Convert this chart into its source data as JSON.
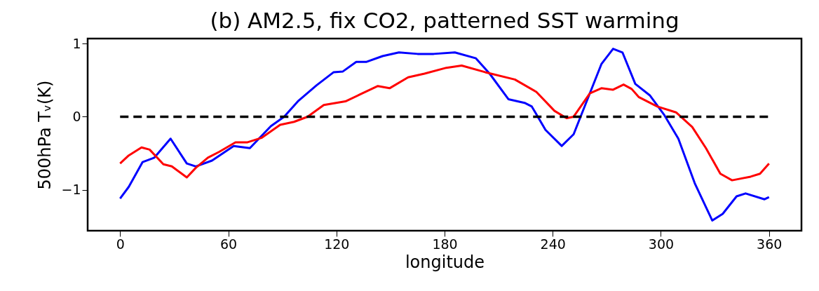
{
  "chart_data": {
    "type": "line",
    "title": "(b) AM2.5, fix CO2, patterned SST warming",
    "xlabel": "longitude",
    "ylabel": "500hPa Tᵥ(K)",
    "xlim": [
      -18,
      378
    ],
    "ylim": [
      -1.56,
      1.07
    ],
    "xticks": [
      0,
      60,
      120,
      180,
      240,
      300,
      360
    ],
    "yticks": [
      -1,
      0,
      1
    ],
    "grid": false,
    "line_style": "solid",
    "marker": "none",
    "series": [
      {
        "color": "#0000ff",
        "x": [
          0,
          4.8,
          12.5,
          19,
          28,
          37,
          42,
          51,
          63,
          72,
          83.6,
          91,
          99,
          109,
          118.5,
          123.6,
          131,
          136.5,
          145.6,
          154.7,
          165,
          174,
          185.7,
          197.4,
          205,
          215.4,
          224.4,
          228.4,
          236,
          245,
          251.6,
          259.3,
          267,
          273.5,
          278.7,
          285.8,
          294,
          302,
          309.7,
          318.8,
          328.5,
          334.3,
          342,
          347,
          357.5,
          360
        ],
        "values": [
          -1.12,
          -0.96,
          -0.62,
          -0.56,
          -0.3,
          -0.64,
          -0.68,
          -0.6,
          -0.4,
          -0.43,
          -0.13,
          0,
          0.22,
          0.43,
          0.61,
          0.62,
          0.75,
          0.75,
          0.83,
          0.88,
          0.86,
          0.86,
          0.88,
          0.8,
          0.59,
          0.24,
          0.19,
          0.14,
          -0.18,
          -0.4,
          -0.24,
          0.24,
          0.72,
          0.93,
          0.88,
          0.45,
          0.29,
          0.02,
          -0.3,
          -0.91,
          -1.42,
          -1.33,
          -1.09,
          -1.05,
          -1.13,
          -1.1
        ]
      },
      {
        "color": "#ff0000",
        "x": [
          0,
          4.8,
          11.9,
          16.4,
          24,
          28.7,
          37,
          42,
          48.7,
          55,
          64,
          70.7,
          78.4,
          88.8,
          96.5,
          104,
          113,
          125,
          132.7,
          143,
          149.5,
          159.8,
          168.9,
          181,
          189.5,
          202.5,
          219,
          230.9,
          241,
          247.7,
          251.6,
          260.6,
          267,
          273.5,
          279.3,
          283.8,
          287.7,
          298,
          308.4,
          317.4,
          325,
          333,
          339.5,
          349.8,
          355,
          360
        ],
        "values": [
          -0.64,
          -0.53,
          -0.42,
          -0.45,
          -0.65,
          -0.68,
          -0.83,
          -0.7,
          -0.56,
          -0.48,
          -0.35,
          -0.35,
          -0.29,
          -0.11,
          -0.07,
          0,
          0.16,
          0.21,
          0.3,
          0.42,
          0.39,
          0.54,
          0.59,
          0.67,
          0.7,
          0.61,
          0.51,
          0.34,
          0.08,
          -0.02,
          0,
          0.32,
          0.39,
          0.37,
          0.44,
          0.38,
          0.27,
          0.14,
          0.06,
          -0.14,
          -0.43,
          -0.78,
          -0.87,
          -0.82,
          -0.78,
          -0.64
        ]
      }
    ],
    "ref_lines": [
      {
        "axis": "y",
        "value": 0,
        "color": "#000000",
        "line_style": "dashed"
      }
    ]
  }
}
